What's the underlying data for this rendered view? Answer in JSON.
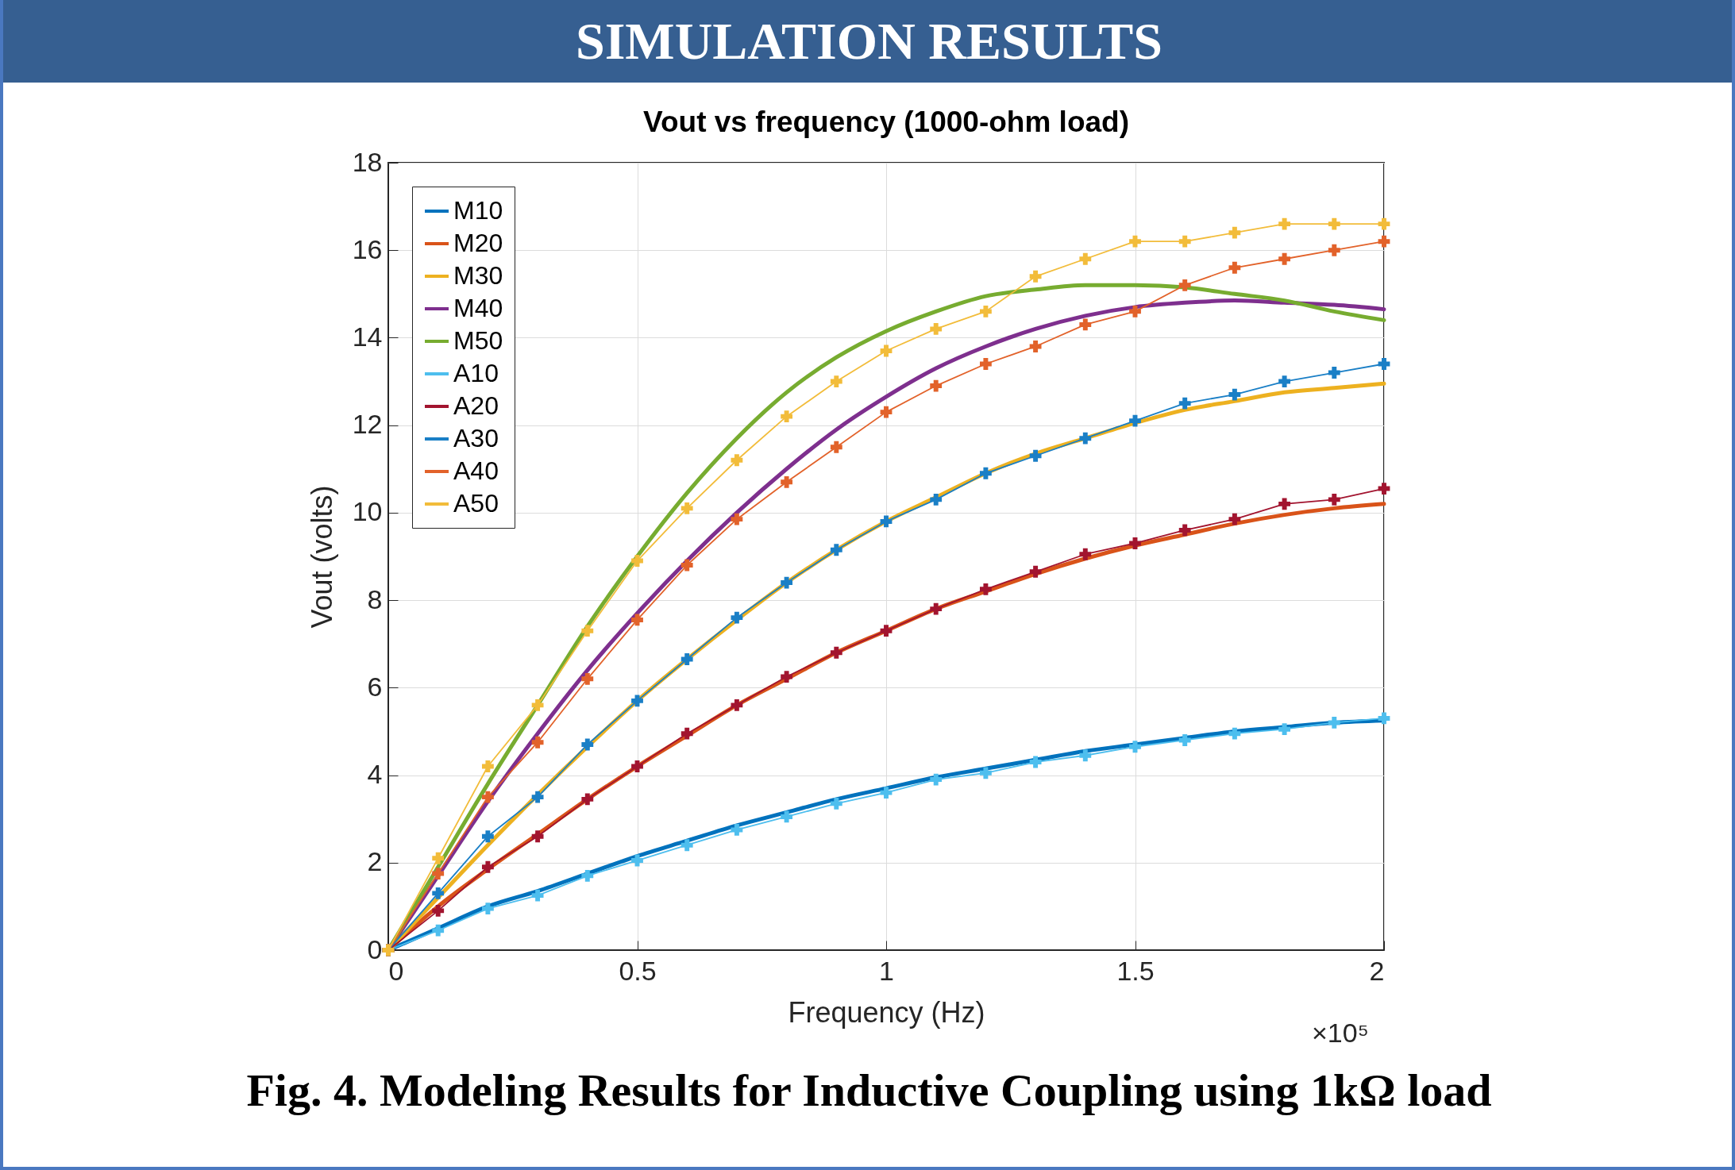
{
  "chart_data": {
    "type": "line",
    "title": "Vout vs frequency (1000-ohm load)",
    "xlabel": "Frequency (Hz)",
    "ylabel": "Vout (volts)",
    "annotations": [
      "SIMULATION RESULTS",
      "×10⁵",
      "Fig. 4. Modeling Results for Inductive Coupling using 1kΩ load"
    ],
    "x": [
      0,
      0.1,
      0.2,
      0.3,
      0.4,
      0.5,
      0.6,
      0.7,
      0.8,
      0.9,
      1.0,
      1.1,
      1.2,
      1.3,
      1.4,
      1.5,
      1.6,
      1.7,
      1.8,
      1.9,
      2.0
    ],
    "series": [
      {
        "name": "M10",
        "color": "#0072bd",
        "marker": "none",
        "values": [
          0,
          0.5,
          1.0,
          1.35,
          1.75,
          2.15,
          2.5,
          2.85,
          3.15,
          3.45,
          3.7,
          3.95,
          4.15,
          4.35,
          4.55,
          4.7,
          4.85,
          5.0,
          5.1,
          5.2,
          5.25
        ]
      },
      {
        "name": "M20",
        "color": "#d95319",
        "marker": "none",
        "values": [
          0,
          1.0,
          1.85,
          2.65,
          3.45,
          4.2,
          4.9,
          5.6,
          6.2,
          6.8,
          7.3,
          7.8,
          8.2,
          8.6,
          8.95,
          9.25,
          9.5,
          9.75,
          9.95,
          10.1,
          10.2
        ]
      },
      {
        "name": "M30",
        "color": "#edb120",
        "marker": "none",
        "values": [
          0,
          1.2,
          2.4,
          3.55,
          4.65,
          5.7,
          6.65,
          7.55,
          8.4,
          9.15,
          9.8,
          10.35,
          10.9,
          11.35,
          11.7,
          12.05,
          12.35,
          12.55,
          12.75,
          12.85,
          12.95
        ]
      },
      {
        "name": "M40",
        "color": "#7e2f8e",
        "marker": "none",
        "values": [
          0,
          1.7,
          3.4,
          4.95,
          6.4,
          7.7,
          8.9,
          10.0,
          11.0,
          11.9,
          12.65,
          13.3,
          13.8,
          14.2,
          14.5,
          14.7,
          14.8,
          14.85,
          14.8,
          14.75,
          14.65
        ]
      },
      {
        "name": "M50",
        "color": "#77ac30",
        "marker": "none",
        "values": [
          0,
          1.9,
          3.8,
          5.6,
          7.4,
          9.0,
          10.45,
          11.7,
          12.75,
          13.55,
          14.15,
          14.6,
          14.95,
          15.1,
          15.2,
          15.2,
          15.15,
          15.0,
          14.85,
          14.6,
          14.4
        ]
      },
      {
        "name": "A10",
        "color": "#4dbeee",
        "marker": "cross",
        "values": [
          0,
          0.45,
          0.95,
          1.25,
          1.7,
          2.05,
          2.4,
          2.75,
          3.05,
          3.35,
          3.6,
          3.9,
          4.05,
          4.3,
          4.45,
          4.65,
          4.8,
          4.95,
          5.05,
          5.2,
          5.3
        ]
      },
      {
        "name": "A20",
        "color": "#a2142f",
        "marker": "cross",
        "values": [
          0,
          0.9,
          1.9,
          2.6,
          3.45,
          4.2,
          4.95,
          5.6,
          6.25,
          6.8,
          7.3,
          7.8,
          8.25,
          8.65,
          9.05,
          9.3,
          9.6,
          9.85,
          10.2,
          10.3,
          10.55
        ]
      },
      {
        "name": "A30",
        "color": "#1a7fc6",
        "marker": "cross",
        "values": [
          0,
          1.3,
          2.6,
          3.5,
          4.7,
          5.7,
          6.65,
          7.6,
          8.4,
          9.15,
          9.8,
          10.3,
          10.9,
          11.3,
          11.7,
          12.1,
          12.5,
          12.7,
          13.0,
          13.2,
          13.4
        ]
      },
      {
        "name": "A40",
        "color": "#e2622a",
        "marker": "cross",
        "values": [
          0,
          1.75,
          3.5,
          4.75,
          6.2,
          7.55,
          8.8,
          9.85,
          10.7,
          11.5,
          12.3,
          12.9,
          13.4,
          13.8,
          14.3,
          14.6,
          15.2,
          15.6,
          15.8,
          16.0,
          16.2
        ]
      },
      {
        "name": "A50",
        "color": "#f2bc3a",
        "marker": "cross",
        "values": [
          0,
          2.1,
          4.2,
          5.6,
          7.3,
          8.9,
          10.1,
          11.2,
          12.2,
          13.0,
          13.7,
          14.2,
          14.6,
          15.4,
          15.8,
          16.2,
          16.2,
          16.4,
          16.6,
          16.6,
          16.6
        ]
      }
    ],
    "xlim": [
      0,
      2
    ],
    "xticks": [
      0,
      0.5,
      1,
      1.5,
      2
    ],
    "ylim": [
      0,
      18
    ],
    "yticks": [
      0,
      2,
      4,
      6,
      8,
      10,
      12,
      14,
      16,
      18
    ],
    "grid": true,
    "legend": "top left"
  }
}
